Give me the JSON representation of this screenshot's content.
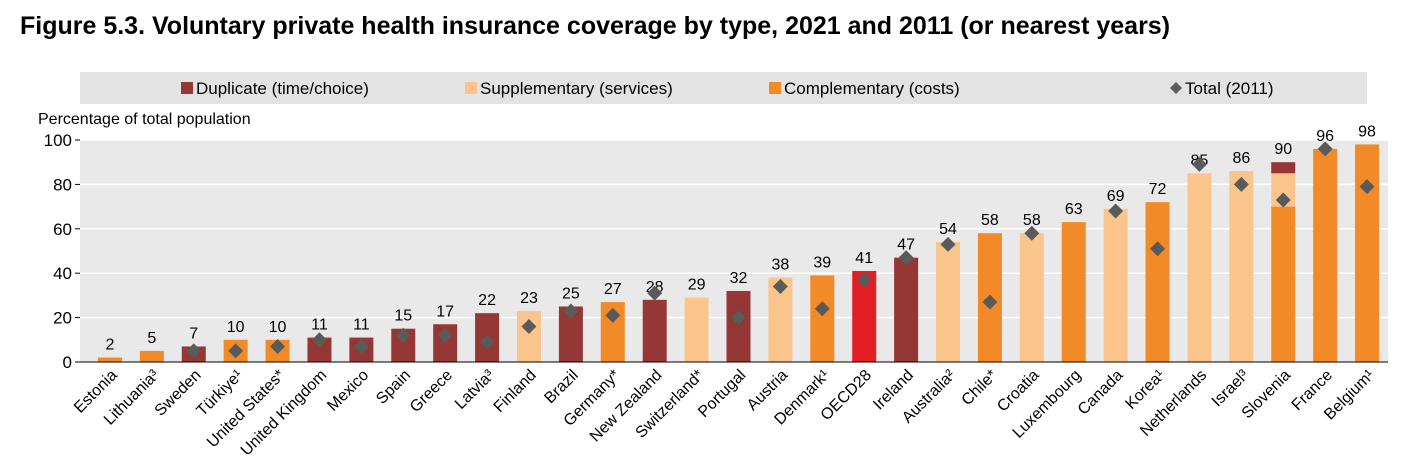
{
  "figure": {
    "title": "Figure 5.3. Voluntary private health insurance coverage by type, 2021 and 2011 (or nearest years)"
  },
  "chart_data": {
    "type": "bar",
    "stacked": true,
    "ylabel": "Percentage of total population",
    "ylim": [
      0,
      100
    ],
    "yticks": [
      0,
      20,
      40,
      60,
      80,
      100
    ],
    "grid": true,
    "legend_position": "top",
    "colors": {
      "duplicate": "#953735",
      "supplementary": "#FAC58C",
      "complementary": "#F28A28",
      "oecd": "#E31E24",
      "total_2011": "#5A5A5A",
      "plot_bg": "#E9E9E9",
      "legend_bg": "#E3E3E3"
    },
    "legend": [
      {
        "key": "duplicate",
        "label": "Duplicate (time/choice)",
        "marker": "square"
      },
      {
        "key": "supplementary",
        "label": "Supplementary (services)",
        "marker": "square"
      },
      {
        "key": "complementary",
        "label": "Complementary (costs)",
        "marker": "square"
      },
      {
        "key": "total_2011",
        "label": "Total (2011)",
        "marker": "diamond"
      }
    ],
    "categories": [
      {
        "name": "Estonia",
        "total": 2,
        "segments": [
          {
            "type": "complementary",
            "value": 2
          }
        ],
        "total_2011": null
      },
      {
        "name": "Lithuania³",
        "total": 5,
        "segments": [
          {
            "type": "complementary",
            "value": 5
          }
        ],
        "total_2011": null
      },
      {
        "name": "Sweden",
        "total": 7,
        "segments": [
          {
            "type": "duplicate",
            "value": 7
          }
        ],
        "total_2011": 5
      },
      {
        "name": "Türkiye¹",
        "total": 10,
        "segments": [
          {
            "type": "complementary",
            "value": 10
          }
        ],
        "total_2011": 5
      },
      {
        "name": "United States*",
        "total": 10,
        "segments": [
          {
            "type": "complementary",
            "value": 10
          }
        ],
        "total_2011": 7
      },
      {
        "name": "United Kingdom",
        "total": 11,
        "segments": [
          {
            "type": "duplicate",
            "value": 11
          }
        ],
        "total_2011": 10
      },
      {
        "name": "Mexico",
        "total": 11,
        "segments": [
          {
            "type": "duplicate",
            "value": 11
          }
        ],
        "total_2011": 7
      },
      {
        "name": "Spain",
        "total": 15,
        "segments": [
          {
            "type": "duplicate",
            "value": 15
          }
        ],
        "total_2011": 12
      },
      {
        "name": "Greece",
        "total": 17,
        "segments": [
          {
            "type": "duplicate",
            "value": 17
          }
        ],
        "total_2011": 12
      },
      {
        "name": "Latvia³",
        "total": 22,
        "segments": [
          {
            "type": "duplicate",
            "value": 22
          }
        ],
        "total_2011": 9
      },
      {
        "name": "Finland",
        "total": 23,
        "segments": [
          {
            "type": "supplementary",
            "value": 23
          }
        ],
        "total_2011": 16
      },
      {
        "name": "Brazil",
        "total": 25,
        "segments": [
          {
            "type": "duplicate",
            "value": 25
          }
        ],
        "total_2011": 23
      },
      {
        "name": "Germany*",
        "total": 27,
        "segments": [
          {
            "type": "complementary",
            "value": 27
          }
        ],
        "total_2011": 21
      },
      {
        "name": "New Zealand",
        "total": 28,
        "segments": [
          {
            "type": "duplicate",
            "value": 28
          }
        ],
        "total_2011": 31
      },
      {
        "name": "Switzerland*",
        "total": 29,
        "segments": [
          {
            "type": "supplementary",
            "value": 29
          }
        ],
        "total_2011": null
      },
      {
        "name": "Portugal",
        "total": 32,
        "segments": [
          {
            "type": "duplicate",
            "value": 32
          }
        ],
        "total_2011": 20
      },
      {
        "name": "Austria",
        "total": 38,
        "segments": [
          {
            "type": "supplementary",
            "value": 38
          }
        ],
        "total_2011": 34
      },
      {
        "name": "Denmark¹",
        "total": 39,
        "segments": [
          {
            "type": "complementary",
            "value": 39
          }
        ],
        "total_2011": 24
      },
      {
        "name": "OECD28",
        "total": 41,
        "segments": [
          {
            "type": "oecd",
            "value": 41
          }
        ],
        "total_2011": 37
      },
      {
        "name": "Ireland",
        "total": 47,
        "segments": [
          {
            "type": "duplicate",
            "value": 47
          }
        ],
        "total_2011": 47
      },
      {
        "name": "Australia²",
        "total": 54,
        "segments": [
          {
            "type": "supplementary",
            "value": 54
          }
        ],
        "total_2011": 53
      },
      {
        "name": "Chile*",
        "total": 58,
        "segments": [
          {
            "type": "complementary",
            "value": 58
          }
        ],
        "total_2011": 27
      },
      {
        "name": "Croatia",
        "total": 58,
        "segments": [
          {
            "type": "supplementary",
            "value": 58
          }
        ],
        "total_2011": 58
      },
      {
        "name": "Luxembourg",
        "total": 63,
        "segments": [
          {
            "type": "complementary",
            "value": 63
          }
        ],
        "total_2011": null
      },
      {
        "name": "Canada",
        "total": 69,
        "segments": [
          {
            "type": "supplementary",
            "value": 69
          }
        ],
        "total_2011": 68
      },
      {
        "name": "Korea¹",
        "total": 72,
        "segments": [
          {
            "type": "complementary",
            "value": 72
          }
        ],
        "total_2011": 51
      },
      {
        "name": "Netherlands",
        "total": 85,
        "segments": [
          {
            "type": "supplementary",
            "value": 85
          }
        ],
        "total_2011": 89
      },
      {
        "name": "Israel³",
        "total": 86,
        "segments": [
          {
            "type": "supplementary",
            "value": 86
          }
        ],
        "total_2011": 80
      },
      {
        "name": "Slovenia",
        "total": 90,
        "segments": [
          {
            "type": "complementary",
            "value": 70
          },
          {
            "type": "supplementary",
            "value": 15
          },
          {
            "type": "duplicate",
            "value": 5
          }
        ],
        "total_2011": 73
      },
      {
        "name": "France",
        "total": 96,
        "segments": [
          {
            "type": "complementary",
            "value": 96
          }
        ],
        "total_2011": 96
      },
      {
        "name": "Belgium¹",
        "total": 98,
        "segments": [
          {
            "type": "complementary",
            "value": 98
          }
        ],
        "total_2011": 79
      }
    ]
  }
}
